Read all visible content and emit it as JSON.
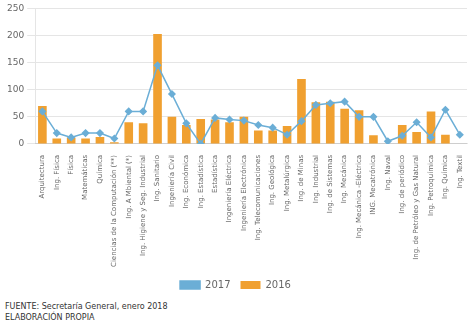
{
  "chart_data": {
    "type": "bar",
    "categories": [
      "Arquitectura",
      "Ing. Física",
      "Física",
      "Matemáticas",
      "Química",
      "Ciencias de la Computación (**)",
      "Ing. A Mbiental (*)",
      "Ing. Higiene y Seg. Industrial",
      "Ing. Sanitario",
      "Ingeniería Civil",
      "Ing. Económica",
      "Ing. Estadística",
      "Estadística",
      "Ingeniería Eléctrica",
      "Ingeniería Electrónica",
      "Ing. Telecomunicaciones",
      "Ing. Geológica",
      "Ing. Metalúrgica",
      "Ing. de Minas",
      "Ing. Industrial",
      "Ing. de Sistemas",
      "Ing. Mecánica",
      "Ing. Mecánica -Eléctrica",
      "ING. Mecatrónica",
      "Ing. Naval",
      "Ing. de periódico",
      "Ing. de Petróleo y Gas Natural",
      "Ing. Petroquímica",
      "Ing. Química",
      "Ing. Textil"
    ],
    "series": [
      {
        "name": "2016",
        "type": "bar",
        "color": "#F0A030",
        "values": [
          70,
          10,
          12,
          10,
          13,
          3,
          40,
          38,
          203,
          50,
          35,
          46,
          45,
          40,
          50,
          25,
          25,
          33,
          120,
          77,
          78,
          65,
          62,
          16,
          0,
          35,
          22,
          60,
          17,
          0
        ]
      },
      {
        "name": "2017",
        "type": "line",
        "color": "#6BAED6",
        "marker": "diamond",
        "values": [
          60,
          20,
          12,
          20,
          20,
          10,
          60,
          60,
          145,
          92,
          38,
          0,
          48,
          45,
          43,
          35,
          30,
          17,
          42,
          72,
          75,
          78,
          50,
          50,
          5,
          15,
          40,
          12,
          63,
          17
        ]
      }
    ],
    "ylim": [
      0,
      250
    ],
    "yticks": [
      0,
      50,
      100,
      150,
      200,
      250
    ],
    "grid": true,
    "legend": "bottom",
    "annotations": [
      "FUENTE: Secretaría General, enero 2018",
      "ELABORACIÓN PROPIA"
    ]
  }
}
